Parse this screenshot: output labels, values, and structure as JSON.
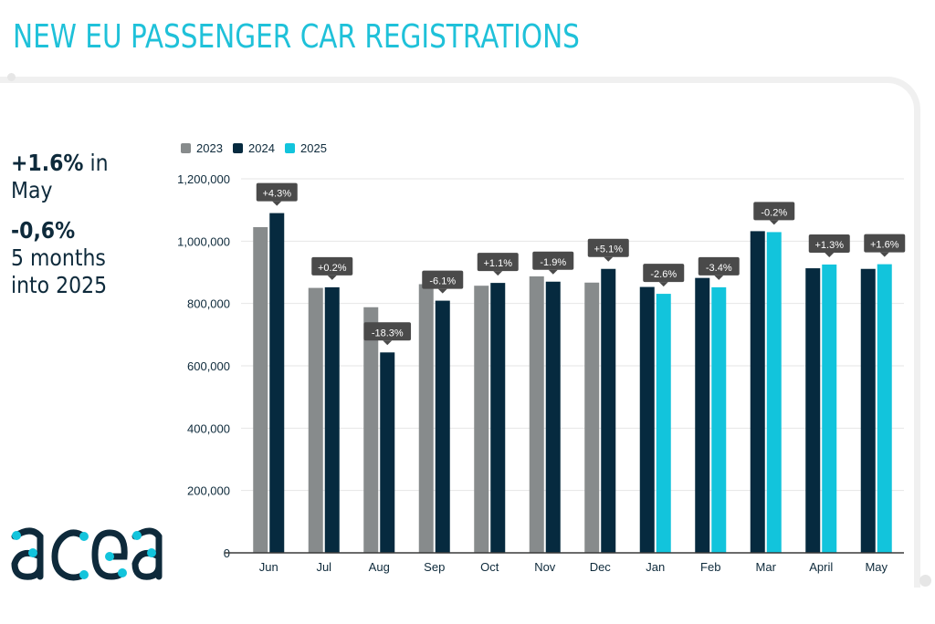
{
  "header": {
    "title": "NEW EU PASSENGER CAR REGISTRATIONS"
  },
  "highlights": {
    "may_change": "+1.6%",
    "may_suffix": " in",
    "may_label": "May",
    "ytd_change": "-0,6%",
    "ytd_label_line1": "5 months",
    "ytd_label_line2": "into 2025"
  },
  "logo": {
    "text": "acea",
    "icon": "acea-logo-icon"
  },
  "colors": {
    "title": "#1fc1d9",
    "y2023": "#878b8c",
    "y2024": "#062a3f",
    "y2025": "#12c4dc",
    "callout": "#4a4a4a",
    "text": "#0e2a3b"
  },
  "chart_data": {
    "type": "bar",
    "title": "",
    "xlabel": "",
    "ylabel": "",
    "ylim": [
      0,
      1200000
    ],
    "yticks": [
      0,
      200000,
      400000,
      600000,
      800000,
      1000000,
      1200000
    ],
    "ytick_labels": [
      "0",
      "200,000",
      "400,000",
      "600,000",
      "800,000",
      "1,000,000",
      "1,200,000"
    ],
    "grid": true,
    "legend_position": "top-left",
    "categories": [
      "Jun",
      "Jul",
      "Aug",
      "Sep",
      "Oct",
      "Nov",
      "Dec",
      "Jan",
      "Feb",
      "Mar",
      "April",
      "May"
    ],
    "series": [
      {
        "name": "2023",
        "color": "#878b8c",
        "values": [
          1045000,
          850000,
          788000,
          862000,
          857000,
          887000,
          867000,
          null,
          null,
          null,
          null,
          null
        ]
      },
      {
        "name": "2024",
        "color": "#062a3f",
        "values": [
          1090000,
          852000,
          643000,
          809000,
          866000,
          870000,
          911000,
          853000,
          882000,
          1032000,
          913000,
          911000
        ]
      },
      {
        "name": "2025",
        "color": "#12c4dc",
        "values": [
          null,
          null,
          null,
          null,
          null,
          null,
          null,
          831000,
          852000,
          1029000,
          925000,
          926000
        ]
      }
    ],
    "annotations": [
      "+4.3%",
      "+0.2%",
      "-18.3%",
      "-6.1%",
      "+1.1%",
      "-1.9%",
      "+5.1%",
      "-2.6%",
      "-3.4%",
      "-0.2%",
      "+1.3%",
      "+1.6%"
    ]
  }
}
